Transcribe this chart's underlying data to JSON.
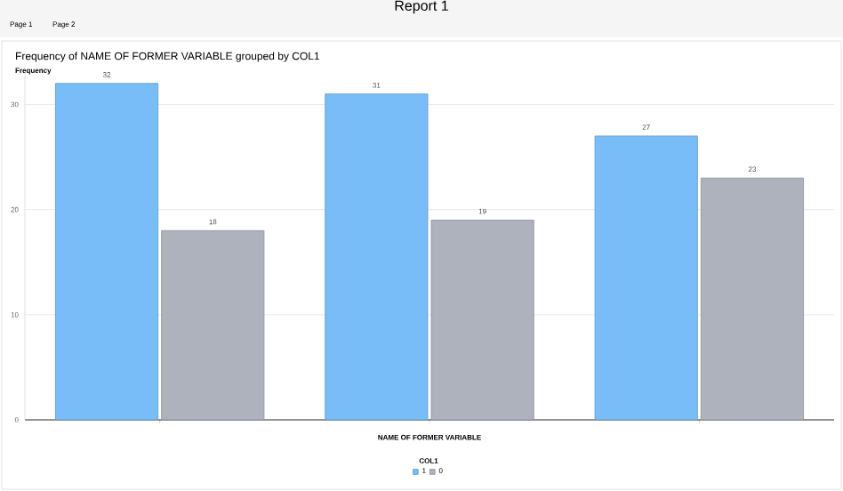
{
  "chart_data": {
    "type": "bar",
    "title": "Frequency of NAME OF FORMER VARIABLE grouped by COL1",
    "ylabel": "Frequency",
    "xlabel": "NAME OF FORMER VARIABLE",
    "legend_title": "COL1",
    "annotations": [
      "Report 1",
      "Page 1",
      "Page 2"
    ],
    "categories": [
      null,
      null,
      null
    ],
    "series": [
      {
        "name": "1",
        "color": "#78bdf8",
        "values": [
          32,
          31,
          27
        ]
      },
      {
        "name": "0",
        "color": "#adb2bd",
        "values": [
          18,
          19,
          23
        ]
      }
    ],
    "ylim": [
      0,
      33
    ],
    "yticks": [
      0,
      10,
      20,
      30
    ],
    "grid": "y",
    "legend": "bottom",
    "data_labels": true
  }
}
